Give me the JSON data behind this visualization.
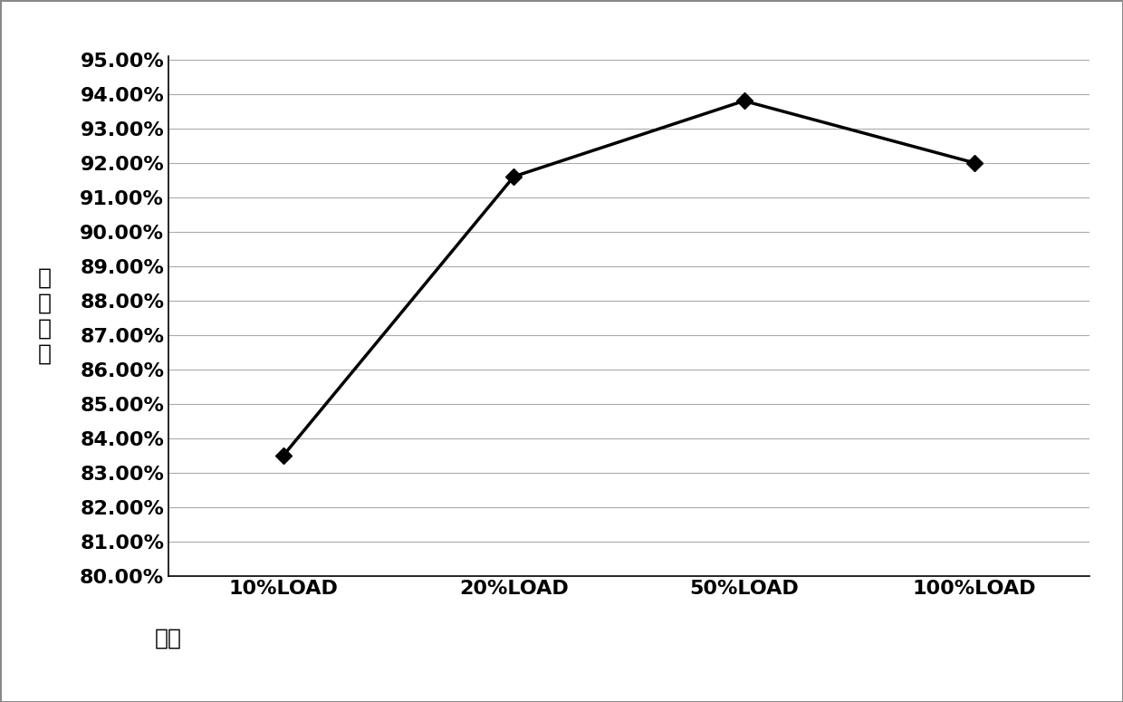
{
  "x_labels": [
    "10%LOAD",
    "20%LOAD",
    "50%LOAD",
    "100%LOAD"
  ],
  "x_label_prefix": "负载",
  "y_values": [
    0.835,
    0.916,
    0.938,
    0.92
  ],
  "y_label_chars": [
    "转",
    "换",
    "效",
    "率"
  ],
  "y_min": 0.8,
  "y_max": 0.95,
  "y_ticks": [
    0.8,
    0.81,
    0.82,
    0.83,
    0.84,
    0.85,
    0.86,
    0.87,
    0.88,
    0.89,
    0.9,
    0.91,
    0.92,
    0.93,
    0.94,
    0.95
  ],
  "line_color": "#000000",
  "marker_style": "D",
  "marker_size": 9,
  "marker_facecolor": "#000000",
  "line_width": 2.5,
  "background_color": "#ffffff",
  "grid_color": "#aaaaaa",
  "border_color": "#000000",
  "figsize": [
    12.4,
    7.75
  ],
  "dpi": 100,
  "tick_fontsize": 16,
  "tick_fontweight": "bold",
  "xlabel_fontsize": 18,
  "ylabel_fontsize": 18
}
